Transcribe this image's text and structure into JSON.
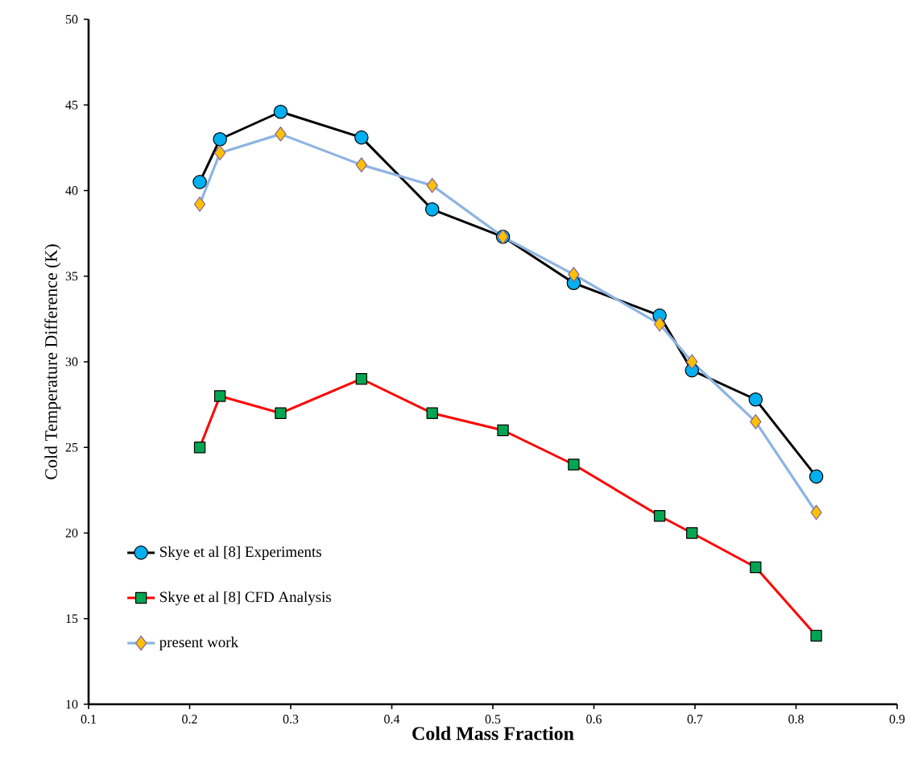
{
  "chart_data": {
    "type": "line",
    "xlabel": "Cold Mass Fraction",
    "ylabel": "Cold Temperature Difference (K)",
    "x": [
      0.21,
      0.23,
      0.29,
      0.37,
      0.44,
      0.51,
      0.58,
      0.665,
      0.697,
      0.76,
      0.82
    ],
    "series": [
      {
        "name": "Skye et al [8] Experiments",
        "color": "#000000",
        "marker": "circle",
        "values": [
          40.5,
          43,
          44.6,
          43.1,
          38.9,
          37.3,
          34.6,
          32.7,
          29.5,
          27.8,
          23.3
        ]
      },
      {
        "name": "Skye et al [8] CFD Analysis",
        "color": "#ff0000",
        "marker": "square",
        "values": [
          25,
          28,
          27,
          29,
          27,
          26,
          24,
          21,
          20,
          18,
          14
        ]
      },
      {
        "name": "present work",
        "color": "#8db4e2",
        "marker": "diamond",
        "values": [
          39.2,
          42.2,
          43.3,
          41.5,
          40.3,
          37.3,
          35.1,
          32.2,
          30,
          26.5,
          21.2
        ]
      }
    ],
    "xlim": [
      0.1,
      0.9
    ],
    "xticks": [
      0.1,
      0.2,
      0.3,
      0.4,
      0.5,
      0.6,
      0.7,
      0.8,
      0.9
    ],
    "ylim": [
      10,
      50
    ],
    "yticks": [
      10,
      15,
      20,
      25,
      30,
      35,
      40,
      45,
      50
    ],
    "grid": false,
    "legend": "bottom left",
    "line_style": "solid"
  }
}
